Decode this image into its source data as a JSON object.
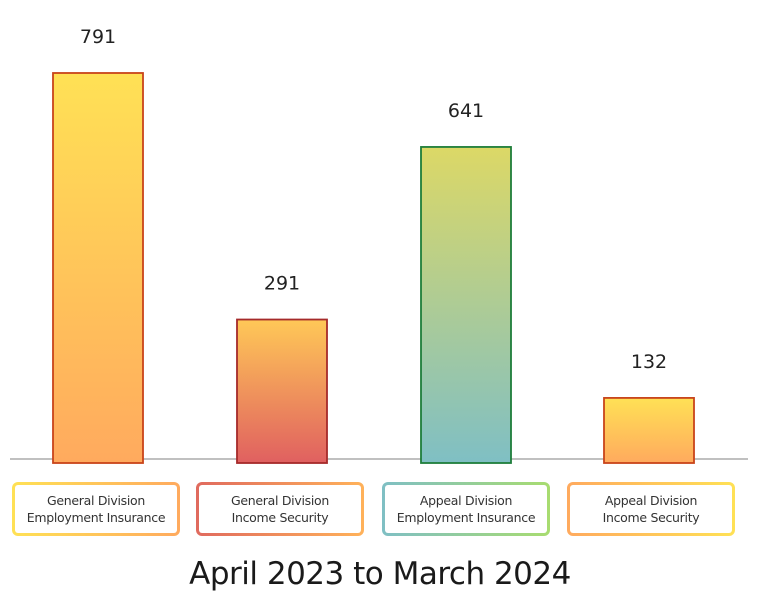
{
  "chart_data": {
    "type": "bar",
    "title": "",
    "caption": "April 2023 to March 2024",
    "xlabel": "",
    "ylabel": "",
    "ylim": [
      0,
      791
    ],
    "grid": false,
    "legend": "none",
    "categories": [
      [
        "General Division",
        "Employment Insurance"
      ],
      [
        "General Division",
        "Income Security"
      ],
      [
        "Appeal Division",
        "Employment Insurance"
      ],
      [
        "Appeal Division",
        "Income Security"
      ]
    ],
    "values": [
      791,
      291,
      641,
      132
    ],
    "data_labels": [
      "791",
      "291",
      "641",
      "132"
    ],
    "bar_styles": [
      {
        "top": "#ffe155",
        "bottom": "#ffaa5e",
        "border": "#c8441a"
      },
      {
        "top": "#ffc857",
        "bottom": "#e06060",
        "border": "#a52a2a"
      },
      {
        "top": "#dcd866",
        "bottom": "#7fbfc4",
        "border": "#1e7d3a"
      },
      {
        "top": "#ffe155",
        "bottom": "#ffaa5e",
        "border": "#c8441a"
      }
    ],
    "label_borders": [
      {
        "a": "#ffe155",
        "b": "#ffaa5e"
      },
      {
        "a": "#e06a5e",
        "b": "#ffb25a"
      },
      {
        "a": "#7fbfc4",
        "b": "#a8dc70"
      },
      {
        "a": "#ffaa5e",
        "b": "#ffe155"
      }
    ],
    "baseline_color": "#9a9a9a"
  }
}
